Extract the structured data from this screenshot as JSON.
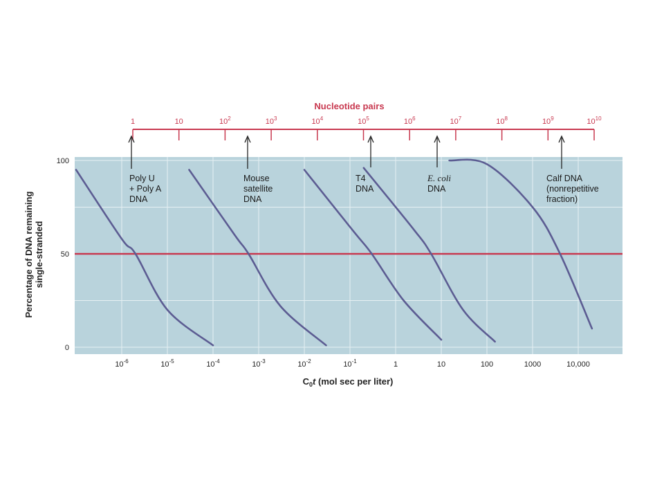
{
  "chart_data": {
    "type": "line",
    "x_scale": "log",
    "xlabel_prefix": "C",
    "xlabel_sub": "0",
    "xlabel_var": "t",
    "xlabel_rest": " (mol sec per liter)",
    "ylabel_line1": "Percentage of DNA remaining",
    "ylabel_line2": "single-stranded",
    "ylim": [
      0,
      100
    ],
    "y_ticks": [
      "100",
      "50",
      "0"
    ],
    "x_ticks": [
      {
        "base": "10",
        "exp": "-6",
        "value": 1e-06
      },
      {
        "base": "10",
        "exp": "-5",
        "value": 1e-05
      },
      {
        "base": "10",
        "exp": "-4",
        "value": 0.0001
      },
      {
        "base": "10",
        "exp": "-3",
        "value": 0.001
      },
      {
        "base": "10",
        "exp": "-2",
        "value": 0.01
      },
      {
        "base": "10",
        "exp": "-1",
        "value": 0.1
      },
      {
        "base": "1",
        "exp": "",
        "value": 1
      },
      {
        "base": "10",
        "exp": "",
        "value": 10
      },
      {
        "base": "100",
        "exp": "",
        "value": 100
      },
      {
        "base": "1000",
        "exp": "",
        "value": 1000
      },
      {
        "base": "10,000",
        "exp": "",
        "value": 10000
      }
    ],
    "xlim_log": [
      -7.0,
      -2.5
    ],
    "half_line_y": 50,
    "series": [
      {
        "key": "polyu",
        "half_c0t": 2e-06,
        "points": [
          [
            1e-07,
            95
          ],
          [
            1e-06,
            58
          ],
          [
            2e-06,
            50
          ],
          [
            1e-05,
            20
          ],
          [
            0.0001,
            1
          ]
        ]
      },
      {
        "key": "mouse",
        "half_c0t": 0.0006,
        "points": [
          [
            3e-05,
            95
          ],
          [
            0.0003,
            60
          ],
          [
            0.0006,
            50
          ],
          [
            0.003,
            22
          ],
          [
            0.03,
            1
          ]
        ]
      },
      {
        "key": "t4",
        "half_c0t": 0.3,
        "points": [
          [
            0.01,
            95
          ],
          [
            0.12,
            62
          ],
          [
            0.3,
            50
          ],
          [
            1.5,
            25
          ],
          [
            10,
            4
          ]
        ]
      },
      {
        "key": "ecoli",
        "half_c0t": 6,
        "points": [
          [
            0.2,
            96
          ],
          [
            2.5,
            63
          ],
          [
            6,
            50
          ],
          [
            30,
            20
          ],
          [
            150,
            3
          ]
        ]
      },
      {
        "key": "calf",
        "half_c0t": 4000,
        "points": [
          [
            15,
            100
          ],
          [
            100,
            98
          ],
          [
            1000,
            75
          ],
          [
            4000,
            50
          ],
          [
            20000,
            10
          ]
        ]
      }
    ],
    "nucleotide_pairs": {
      "title": "Nucleotide pairs",
      "ticks": [
        {
          "base": "1",
          "exp": ""
        },
        {
          "base": "10",
          "exp": ""
        },
        {
          "base": "10",
          "exp": "2"
        },
        {
          "base": "10",
          "exp": "3"
        },
        {
          "base": "10",
          "exp": "4"
        },
        {
          "base": "10",
          "exp": "5"
        },
        {
          "base": "10",
          "exp": "6"
        },
        {
          "base": "10",
          "exp": "7"
        },
        {
          "base": "10",
          "exp": "8"
        },
        {
          "base": "10",
          "exp": "9"
        },
        {
          "base": "10",
          "exp": "10"
        }
      ]
    },
    "annotations": [
      {
        "key": "polyu",
        "lines": [
          "Poly U",
          "+ Poly A",
          "DNA"
        ],
        "italic_first": false
      },
      {
        "key": "mouse",
        "lines": [
          "Mouse",
          "satellite",
          "DNA"
        ],
        "italic_first": false
      },
      {
        "key": "t4",
        "lines": [
          "T4",
          "DNA"
        ],
        "italic_first": false
      },
      {
        "key": "ecoli",
        "lines": [
          "E. coli",
          "DNA"
        ],
        "italic_first": true
      },
      {
        "key": "calf",
        "lines": [
          "Calf DNA",
          "(nonrepetitive",
          "fraction)"
        ],
        "italic_first": false
      }
    ],
    "colors": {
      "plot_bg": "#b9d3dc",
      "grid": "#e6f0f3",
      "curve": "#5c5c92",
      "accent": "#c8384f",
      "axis_text": "#222222"
    }
  }
}
